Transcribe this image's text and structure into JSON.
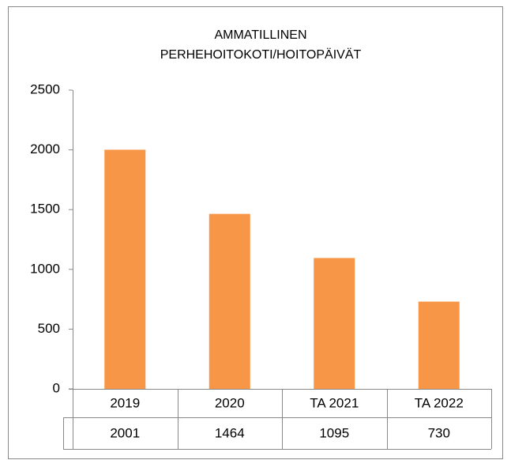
{
  "chart_data": {
    "type": "bar",
    "title": [
      "AMMATILLINEN",
      "PERHEHOITOKOTI/HOITOPÄIVÄT"
    ],
    "categories": [
      "2019",
      "2020",
      "TA 2021",
      "TA 2022"
    ],
    "values": [
      2001,
      1464,
      1095,
      730
    ],
    "color": "#f79646",
    "ylim": [
      0,
      2500
    ],
    "yticks": [
      0,
      500,
      1000,
      1500,
      2000,
      2500
    ],
    "grid": false,
    "data_table": true
  }
}
